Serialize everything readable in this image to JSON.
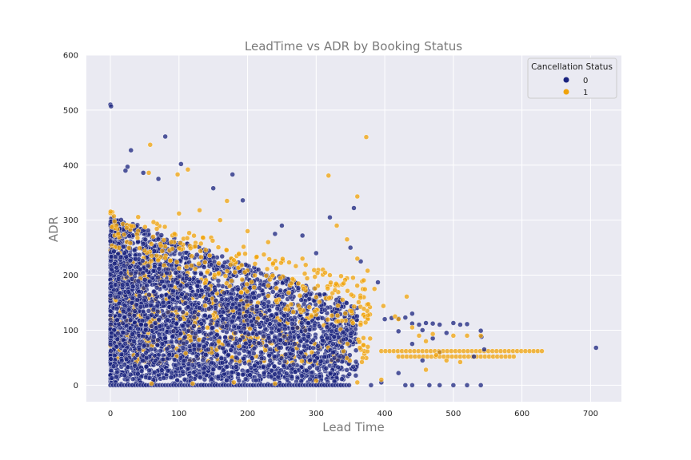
{
  "chart_data": {
    "type": "scatter",
    "title": "LeadTime vs ADR by Booking Status",
    "xlabel": "Lead Time",
    "ylabel": "ADR",
    "xlim": [
      -35,
      745
    ],
    "ylim": [
      -30,
      600
    ],
    "xticks": [
      0,
      100,
      200,
      300,
      400,
      500,
      600,
      700
    ],
    "yticks": [
      0,
      100,
      200,
      300,
      400,
      500,
      600
    ],
    "grid": true,
    "legend": {
      "title": "Cancellation Status",
      "placement": "top-right",
      "entries": [
        "0",
        "1"
      ]
    },
    "series": [
      {
        "name": "0",
        "color": "#1a237e",
        "points": [
          [
            0,
            510
          ],
          [
            1,
            507
          ],
          [
            80,
            452
          ],
          [
            30,
            427
          ],
          [
            103,
            402
          ],
          [
            25,
            397
          ],
          [
            22,
            390
          ],
          [
            48,
            386
          ],
          [
            70,
            375
          ],
          [
            150,
            358
          ],
          [
            178,
            383
          ],
          [
            193,
            336
          ],
          [
            320,
            305
          ],
          [
            355,
            322
          ],
          [
            390,
            187
          ],
          [
            400,
            120
          ],
          [
            410,
            122
          ],
          [
            420,
            121
          ],
          [
            430,
            123
          ],
          [
            440,
            112
          ],
          [
            450,
            110
          ],
          [
            460,
            113
          ],
          [
            470,
            112
          ],
          [
            480,
            110
          ],
          [
            500,
            113
          ],
          [
            510,
            110
          ],
          [
            520,
            111
          ],
          [
            540,
            99
          ],
          [
            541,
            88
          ],
          [
            545,
            65
          ],
          [
            530,
            52
          ],
          [
            708,
            68
          ],
          [
            380,
            0
          ],
          [
            430,
            0
          ],
          [
            440,
            0
          ],
          [
            465,
            0
          ],
          [
            480,
            0
          ],
          [
            500,
            0
          ],
          [
            520,
            0
          ],
          [
            540,
            0
          ],
          [
            420,
            22
          ],
          [
            395,
            5
          ],
          [
            480,
            60
          ],
          [
            490,
            95
          ],
          [
            455,
            45
          ],
          [
            440,
            75
          ],
          [
            470,
            85
          ],
          [
            455,
            100
          ],
          [
            440,
            130
          ],
          [
            420,
            98
          ],
          [
            365,
            225
          ],
          [
            350,
            250
          ],
          [
            300,
            240
          ],
          [
            280,
            272
          ],
          [
            250,
            290
          ],
          [
            240,
            275
          ]
        ]
      },
      {
        "name": "1",
        "color": "#f0a30a",
        "points": [
          [
            58,
            437
          ],
          [
            373,
            451
          ],
          [
            318,
            381
          ],
          [
            98,
            383
          ],
          [
            113,
            392
          ],
          [
            56,
            386
          ],
          [
            360,
            343
          ],
          [
            330,
            290
          ],
          [
            345,
            265
          ],
          [
            360,
            230
          ],
          [
            375,
            208
          ],
          [
            385,
            175
          ],
          [
            398,
            144
          ],
          [
            415,
            125
          ],
          [
            432,
            161
          ],
          [
            480,
            60
          ],
          [
            500,
            90
          ],
          [
            520,
            90
          ],
          [
            540,
            90
          ],
          [
            450,
            90
          ],
          [
            460,
            80
          ],
          [
            475,
            55
          ],
          [
            490,
            45
          ],
          [
            510,
            42
          ],
          [
            460,
            28
          ],
          [
            395,
            10
          ],
          [
            360,
            5
          ],
          [
            470,
            93
          ],
          [
            440,
            105
          ],
          [
            420,
            120
          ],
          [
            300,
            160
          ],
          [
            320,
            200
          ],
          [
            340,
            185
          ],
          [
            280,
            230
          ],
          [
            230,
            260
          ],
          [
            200,
            280
          ],
          [
            160,
            300
          ],
          [
            130,
            318
          ],
          [
            100,
            312
          ],
          [
            170,
            335
          ],
          [
            60,
            3
          ],
          [
            120,
            3
          ],
          [
            180,
            5
          ],
          [
            240,
            3
          ],
          [
            300,
            8
          ]
        ]
      }
    ],
    "trail_points": {
      "name": "1",
      "x_start": 395,
      "x_end": 630,
      "step": 6,
      "y": 62
    }
  }
}
